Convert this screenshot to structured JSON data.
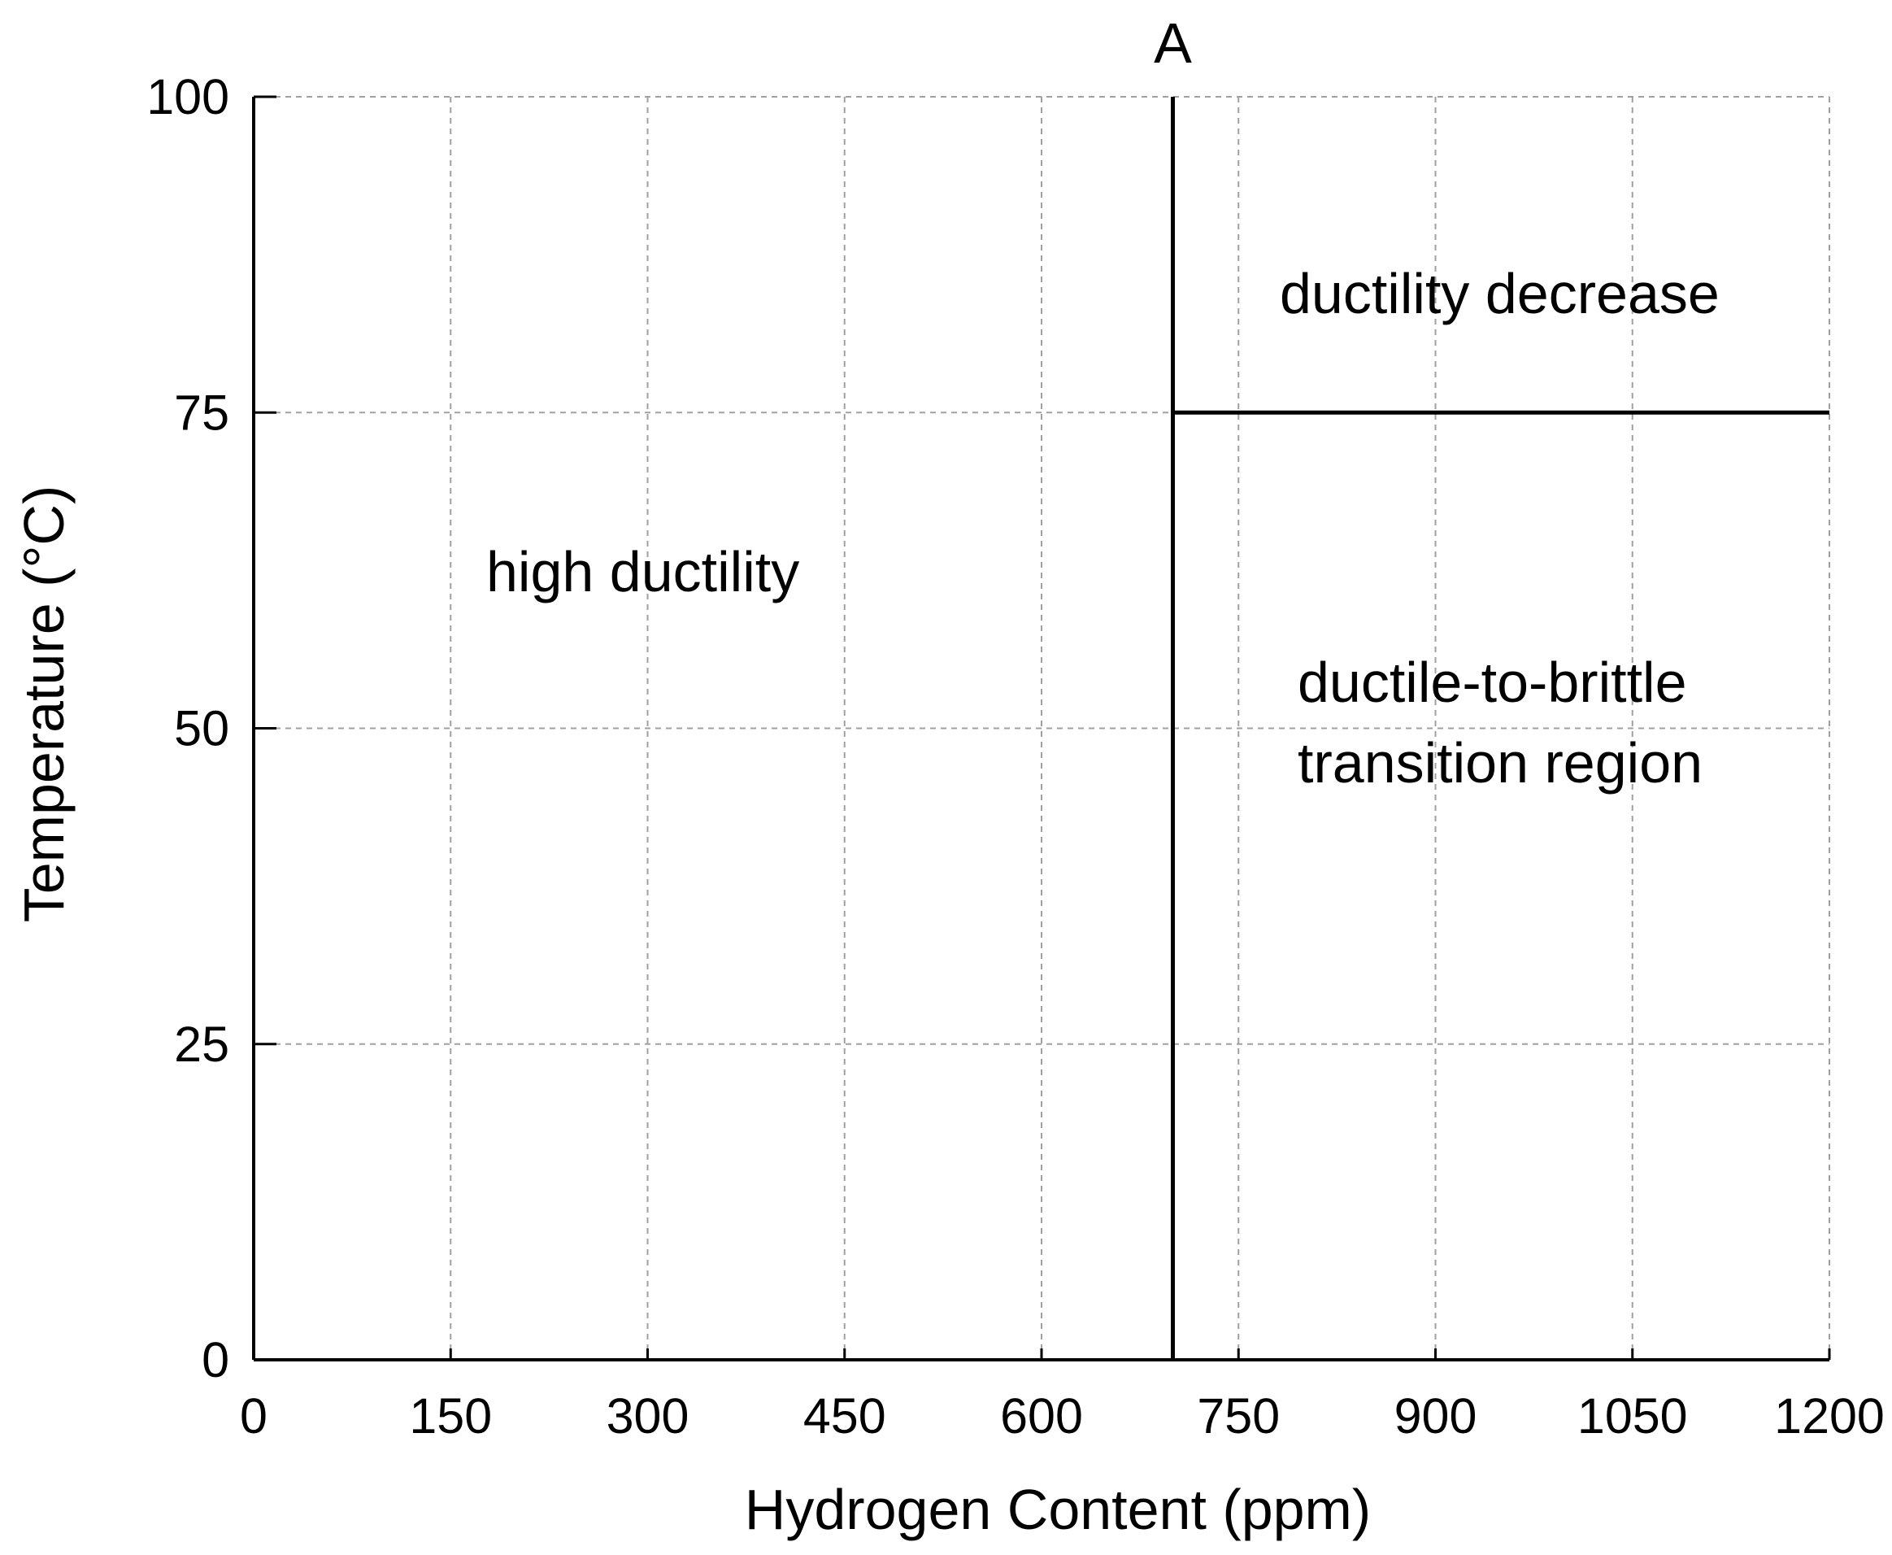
{
  "chart_data": {
    "type": "line",
    "title": "",
    "xlabel": "Hydrogen Content (ppm)",
    "ylabel": "Temperature (°C)",
    "xlim": [
      0,
      1200
    ],
    "ylim": [
      0,
      100
    ],
    "x_ticks": [
      0,
      150,
      300,
      450,
      600,
      750,
      900,
      1050,
      1200
    ],
    "y_ticks": [
      0,
      25,
      50,
      75,
      100
    ],
    "x_tick_labels": [
      "0",
      "150",
      "300",
      "450",
      "600",
      "750",
      "900",
      "1050",
      "1200"
    ],
    "y_tick_labels": [
      "0",
      "25",
      "50",
      "75",
      "100"
    ],
    "grid": true,
    "legend": "none",
    "lines": [
      {
        "x": [
          700,
          700
        ],
        "y": [
          0,
          100
        ]
      },
      {
        "x": [
          700,
          1200
        ],
        "y": [
          75,
          75
        ]
      }
    ],
    "annotations": [
      {
        "text": "A",
        "x": 700,
        "y": 100
      },
      {
        "text": "high ductility",
        "x": 315,
        "y": 62
      },
      {
        "text": "ductility decrease",
        "x": 975,
        "y": 84
      },
      {
        "text": "ductile-to-brittle",
        "x": 970,
        "y": 53
      },
      {
        "text": "transition region",
        "x": 970,
        "y": 47
      }
    ],
    "colors": {
      "line": "#000000",
      "grid": "#a0a0a0",
      "axis": "#000000"
    }
  }
}
